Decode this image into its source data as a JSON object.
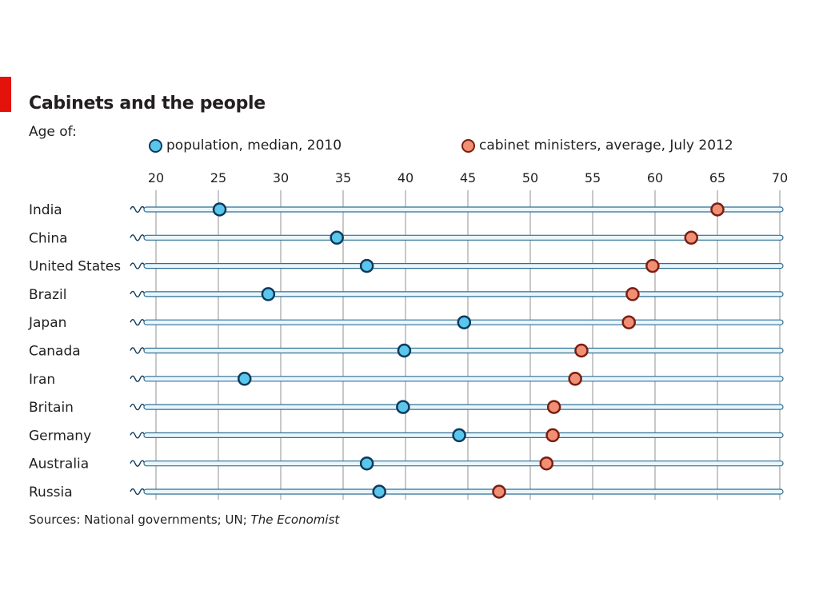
{
  "chart_data": {
    "type": "dot-plot",
    "title": "Cabinets and the people",
    "subtitle": "Age of:",
    "source_prefix": "Sources: National governments; UN; ",
    "source_italic": "The Economist",
    "x_ticks": [
      20,
      25,
      30,
      35,
      40,
      45,
      50,
      55,
      60,
      65,
      70
    ],
    "xlim": [
      20,
      70
    ],
    "grid": true,
    "legend_position": "top",
    "series": [
      {
        "name": "population, median, 2010",
        "fill": "#5bc6ec",
        "stroke": "#0d3a5c"
      },
      {
        "name": "cabinet ministers, average, July 2012",
        "fill": "#f08f74",
        "stroke": "#7a1e10"
      }
    ],
    "categories": [
      "India",
      "China",
      "United States",
      "Brazil",
      "Japan",
      "Canada",
      "Iran",
      "Britain",
      "Germany",
      "Australia",
      "Russia"
    ],
    "population_median": [
      25.1,
      34.5,
      36.9,
      29.0,
      44.7,
      39.9,
      27.1,
      39.8,
      44.3,
      36.9,
      37.9
    ],
    "cabinet_average": [
      65.0,
      62.9,
      59.8,
      58.2,
      57.9,
      54.1,
      53.6,
      51.9,
      51.8,
      51.3,
      47.5
    ]
  }
}
